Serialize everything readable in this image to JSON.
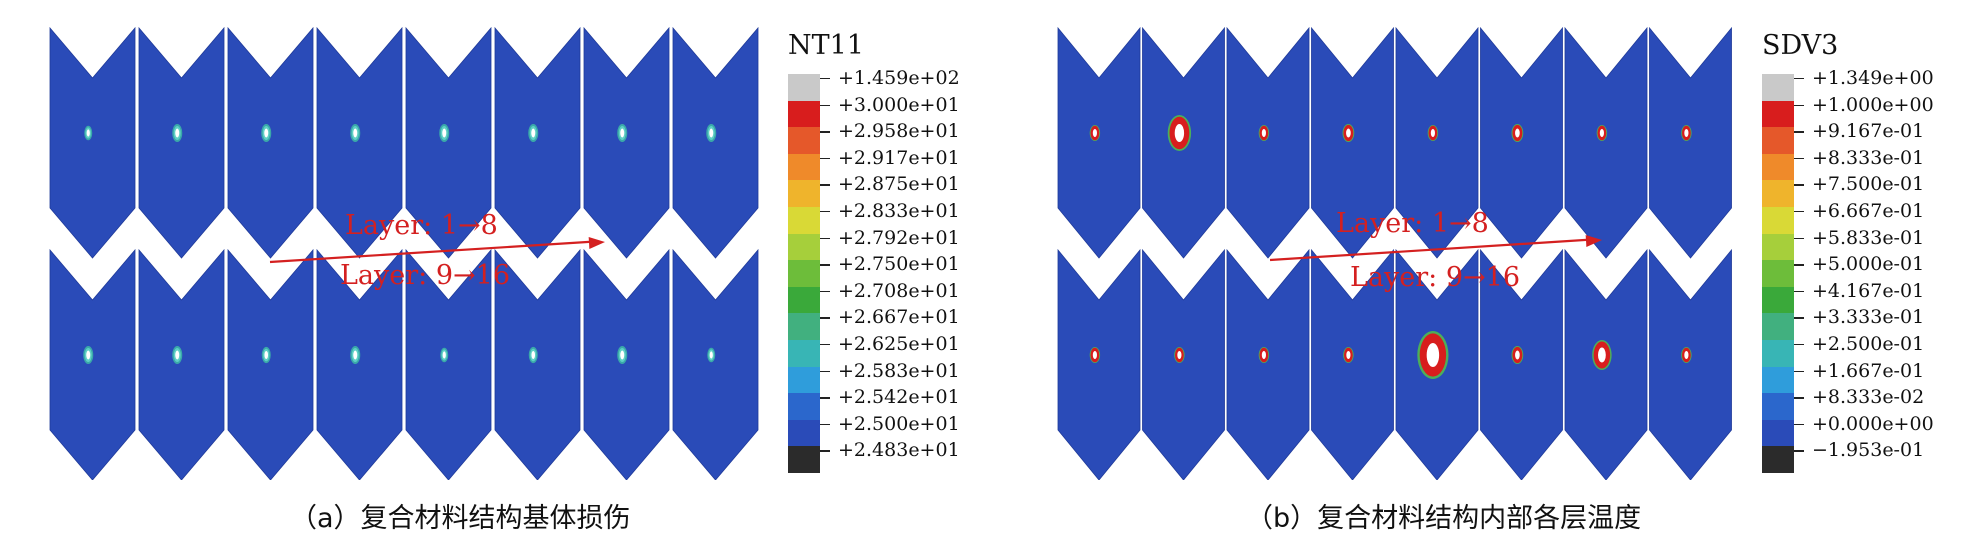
{
  "panel_a": {
    "legend_title": "NT11",
    "legend_labels": [
      "+1.459e+02",
      "+3.000e+01",
      "+2.958e+01",
      "+2.917e+01",
      "+2.875e+01",
      "+2.833e+01",
      "+2.792e+01",
      "+2.750e+01",
      "+2.708e+01",
      "+2.667e+01",
      "+2.625e+01",
      "+2.583e+01",
      "+2.542e+01",
      "+2.500e+01",
      "+2.483e+01"
    ],
    "layer_label_top": "Layer: 1→8",
    "layer_label_bottom": "Layer: 9→16",
    "caption": "（a）复合材料结构基体损伤",
    "spot_style": "thermal"
  },
  "panel_b": {
    "legend_title": "SDV3",
    "legend_labels": [
      "+1.349e+00",
      "+1.000e+00",
      "+9.167e-01",
      "+8.333e-01",
      "+7.500e-01",
      "+6.667e-01",
      "+5.833e-01",
      "+5.000e-01",
      "+4.167e-01",
      "+3.333e-01",
      "+2.500e-01",
      "+1.667e-01",
      "+8.333e-02",
      "+0.000e+00",
      "−1.953e-01"
    ],
    "layer_label_top": "Layer: 1→8",
    "layer_label_bottom": "Layer: 9→16",
    "caption": "（b）复合材料结构内部各层温度",
    "spot_style": "damage"
  },
  "colors": {
    "ply_fill": "#2a4bb8",
    "arrow": "#d42020",
    "legend_scale": [
      "#c9c9c9",
      "#d81d1d",
      "#e5582a",
      "#ef8a2a",
      "#efb42c",
      "#d9d936",
      "#a6cf3b",
      "#6dbd3a",
      "#3aa93a",
      "#41b07f",
      "#38b5b5",
      "#2f9ddb",
      "#2b67cc",
      "#2a4bb8",
      "#2b2b2b"
    ]
  }
}
